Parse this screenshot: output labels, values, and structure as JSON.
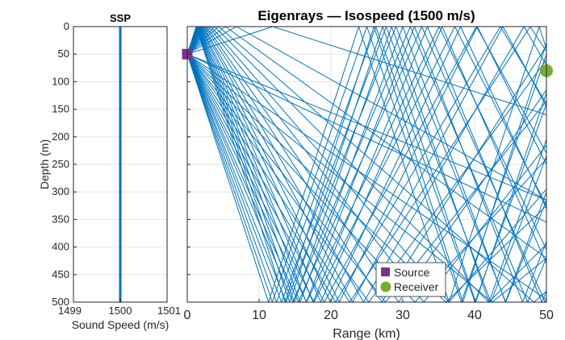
{
  "chart_data": [
    {
      "type": "line",
      "title": "SSP",
      "xlabel": "Sound Speed (m/s)",
      "ylabel": "Depth (m)",
      "xlim": [
        1499,
        1501
      ],
      "ylim": [
        500,
        0
      ],
      "xticks": [
        "1499",
        "1500",
        "1501"
      ],
      "yticks": [
        "0",
        "50",
        "100",
        "150",
        "200",
        "250",
        "300",
        "350",
        "400",
        "450",
        "500"
      ],
      "grid": true,
      "series": [
        {
          "x": [
            1500,
            1500
          ],
          "y": [
            0,
            500
          ],
          "color": "#0072BD"
        }
      ]
    },
    {
      "type": "line",
      "title": "Eigenrays — Isospeed (1500 m/s)",
      "xlabel": "Range (km)",
      "ylabel": "",
      "xlim": [
        0,
        50
      ],
      "ylim": [
        500,
        0
      ],
      "xticks": [
        "0",
        "10",
        "20",
        "30",
        "40",
        "50"
      ],
      "grid": true,
      "legend_position": "bottom-right",
      "ray_color": "#0072BD",
      "source": {
        "label": "Source",
        "range_km": 0,
        "depth_m": 50,
        "color": "#7E2F8E",
        "marker": "square"
      },
      "receiver": {
        "label": "Receiver",
        "range_km": 50,
        "depth_m": 80,
        "color": "#77AC30",
        "marker": "circle"
      },
      "eigenray_launch_slopes": [
        0.0053,
        0.0061,
        0.0089,
        0.0106,
        0.0125,
        0.0142,
        0.0163,
        0.0178,
        0.0199,
        0.0218,
        0.0236,
        0.0255,
        0.0271,
        0.0291,
        0.0306,
        0.0327,
        0.0343,
        0.0362,
        0.038,
        0.0398,
        -0.0042,
        -0.0073,
        -0.0094,
        -0.0114,
        -0.0131,
        -0.0151,
        -0.0167,
        -0.0187,
        -0.0203,
        -0.0224,
        -0.0239,
        -0.026,
        -0.0276,
        -0.0296,
        -0.0314,
        -0.0332,
        -0.035,
        -0.0369,
        -0.0386,
        -0.0404
      ]
    }
  ]
}
